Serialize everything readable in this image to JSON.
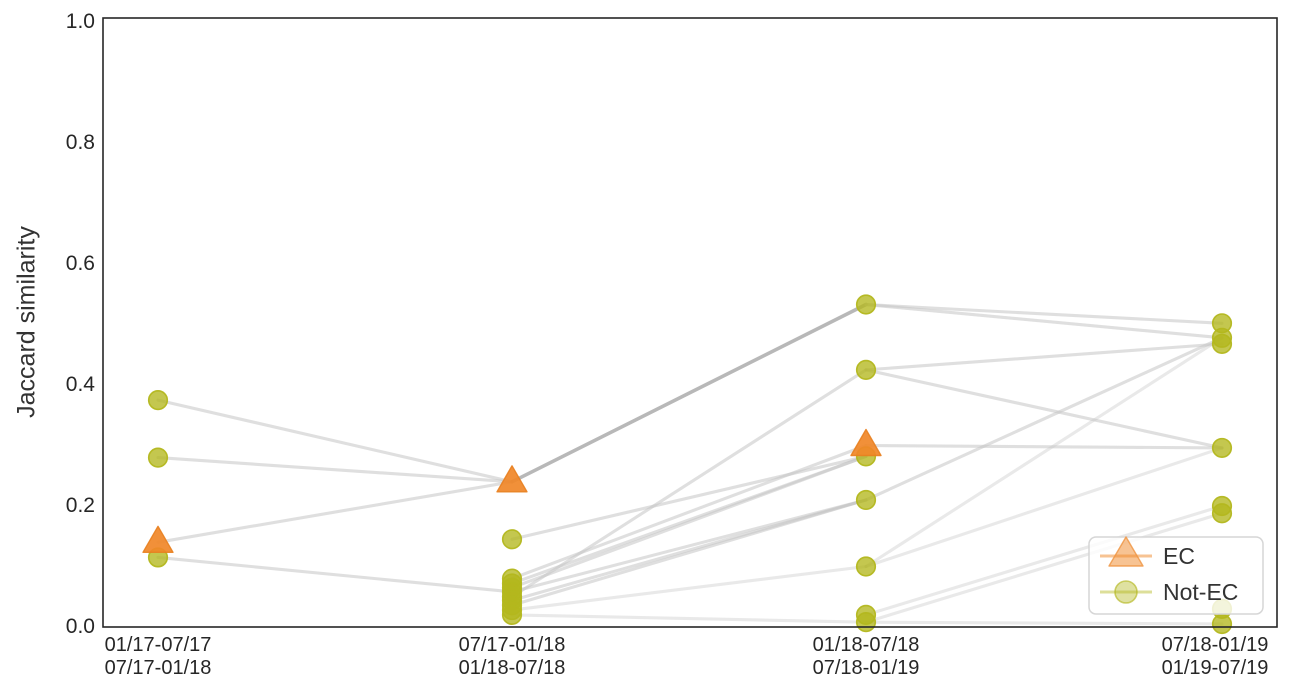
{
  "chart_data": {
    "type": "scatter",
    "subtype": "slope-chart-with-markers",
    "title": "",
    "xlabel": "",
    "ylabel": "Jaccard similarity",
    "ylim": [
      0.0,
      1.0
    ],
    "grid": false,
    "yticks": [
      "0.0",
      "0.2",
      "0.4",
      "0.6",
      "0.8",
      "1.0"
    ],
    "ytick_values": [
      0.0,
      0.2,
      0.4,
      0.6,
      0.8,
      1.0
    ],
    "categories": [
      {
        "line1": "01/17-07/17",
        "line2": "07/17-01/18"
      },
      {
        "line1": "07/17-01/18",
        "line2": "01/18-07/18"
      },
      {
        "line1": "01/18-07/18",
        "line2": "07/18-01/19"
      },
      {
        "line1": "07/18-01/19",
        "line2": "01/19-07/19"
      }
    ],
    "series": [
      {
        "name": "EC",
        "marker": "triangle",
        "color": "#f08728",
        "points": [
          [
            0,
            0.14
          ],
          [
            1,
            0.24
          ],
          [
            2,
            0.3
          ]
        ]
      },
      {
        "name": "Not-EC",
        "marker": "circle",
        "color": "#b3b71e",
        "points": [
          [
            0,
            0.375
          ],
          [
            0,
            0.28
          ],
          [
            0,
            0.115
          ],
          [
            1,
            0.145
          ],
          [
            1,
            0.08
          ],
          [
            1,
            0.072
          ],
          [
            1,
            0.065
          ],
          [
            1,
            0.058
          ],
          [
            1,
            0.05
          ],
          [
            1,
            0.044
          ],
          [
            1,
            0.036
          ],
          [
            1,
            0.028
          ],
          [
            1,
            0.02
          ],
          [
            2,
            0.533
          ],
          [
            2,
            0.425
          ],
          [
            2,
            0.282
          ],
          [
            2,
            0.21
          ],
          [
            2,
            0.1
          ],
          [
            2,
            0.02
          ],
          [
            2,
            0.008
          ],
          [
            3,
            0.502
          ],
          [
            3,
            0.478
          ],
          [
            3,
            0.468
          ],
          [
            3,
            0.296
          ],
          [
            3,
            0.2
          ],
          [
            3,
            0.188
          ],
          [
            3,
            0.03
          ],
          [
            3,
            0.005
          ]
        ]
      }
    ],
    "segments": [
      {
        "from": [
          0,
          0.375
        ],
        "to": [
          1,
          0.24
        ],
        "style": "normal"
      },
      {
        "from": [
          0,
          0.28
        ],
        "to": [
          1,
          0.24
        ],
        "style": "normal"
      },
      {
        "from": [
          0,
          0.14
        ],
        "to": [
          1,
          0.24
        ],
        "style": "normal"
      },
      {
        "from": [
          0,
          0.115
        ],
        "to": [
          1,
          0.058
        ],
        "style": "normal"
      },
      {
        "from": [
          1,
          0.24
        ],
        "to": [
          2,
          0.533
        ],
        "style": "emph"
      },
      {
        "from": [
          1,
          0.05
        ],
        "to": [
          2,
          0.425
        ],
        "style": "normal"
      },
      {
        "from": [
          1,
          0.145
        ],
        "to": [
          2,
          0.282
        ],
        "style": "normal"
      },
      {
        "from": [
          1,
          0.08
        ],
        "to": [
          2,
          0.3
        ],
        "style": "normal"
      },
      {
        "from": [
          1,
          0.072
        ],
        "to": [
          2,
          0.282
        ],
        "style": "normal"
      },
      {
        "from": [
          1,
          0.065
        ],
        "to": [
          2,
          0.282
        ],
        "style": "normal"
      },
      {
        "from": [
          1,
          0.058
        ],
        "to": [
          2,
          0.21
        ],
        "style": "normal"
      },
      {
        "from": [
          1,
          0.044
        ],
        "to": [
          2,
          0.21
        ],
        "style": "normal"
      },
      {
        "from": [
          1,
          0.036
        ],
        "to": [
          2,
          0.21
        ],
        "style": "normal"
      },
      {
        "from": [
          1,
          0.028
        ],
        "to": [
          2,
          0.1
        ],
        "style": "light"
      },
      {
        "from": [
          1,
          0.02
        ],
        "to": [
          2,
          0.008
        ],
        "style": "light"
      },
      {
        "from": [
          2,
          0.533
        ],
        "to": [
          3,
          0.502
        ],
        "style": "normal"
      },
      {
        "from": [
          2,
          0.533
        ],
        "to": [
          3,
          0.478
        ],
        "style": "normal"
      },
      {
        "from": [
          2,
          0.425
        ],
        "to": [
          3,
          0.468
        ],
        "style": "normal"
      },
      {
        "from": [
          2,
          0.21
        ],
        "to": [
          3,
          0.478
        ],
        "style": "normal"
      },
      {
        "from": [
          2,
          0.1
        ],
        "to": [
          3,
          0.478
        ],
        "style": "light"
      },
      {
        "from": [
          2,
          0.425
        ],
        "to": [
          3,
          0.296
        ],
        "style": "normal"
      },
      {
        "from": [
          2,
          0.3
        ],
        "to": [
          3,
          0.296
        ],
        "style": "normal"
      },
      {
        "from": [
          2,
          0.1
        ],
        "to": [
          3,
          0.296
        ],
        "style": "light"
      },
      {
        "from": [
          2,
          0.02
        ],
        "to": [
          3,
          0.2
        ],
        "style": "light"
      },
      {
        "from": [
          2,
          0.008
        ],
        "to": [
          3,
          0.188
        ],
        "style": "light"
      },
      {
        "from": [
          2,
          0.008
        ],
        "to": [
          3,
          0.005
        ],
        "style": "light"
      }
    ],
    "legend": {
      "position": "lower right",
      "items": [
        {
          "label": "EC",
          "marker": "triangle",
          "color": "#f08728"
        },
        {
          "label": "Not-EC",
          "marker": "circle",
          "color": "#b3b71e"
        }
      ]
    },
    "colors": {
      "ec": "#f08728",
      "not_ec": "#b3b71e",
      "line": "#c4c4c4",
      "line_emph": "#ababab",
      "axis": "#262626",
      "text": "#333333",
      "legend_border": "#d6d6d6"
    }
  }
}
